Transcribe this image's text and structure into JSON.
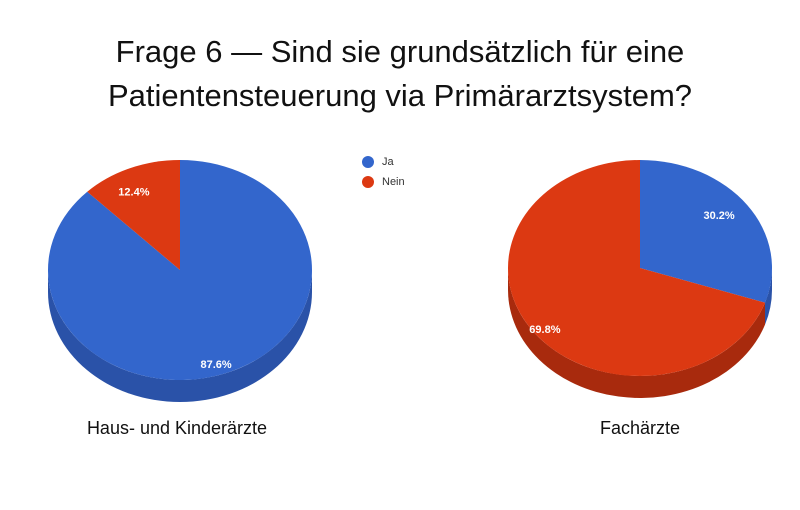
{
  "title": {
    "line1": "Frage 6 — Sind sie grundsätzlich für eine",
    "line2": "Patientensteuerung via Primärarztsystem?"
  },
  "legend": [
    {
      "label": "Ja",
      "color": "#3366cc"
    },
    {
      "label": "Nein",
      "color": "#dc3912"
    }
  ],
  "chart_data": [
    {
      "type": "pie",
      "caption": "Haus- und Kinderärzte",
      "slices": [
        {
          "label": "Ja",
          "value": 87.6,
          "text": "87.6%",
          "color": "#3366cc",
          "side_color": "#2a52a8"
        },
        {
          "label": "Nein",
          "value": 12.4,
          "text": "12.4%",
          "color": "#dc3912",
          "side_color": "#a82a0d"
        }
      ]
    },
    {
      "type": "pie",
      "caption": "Fachärzte",
      "slices": [
        {
          "label": "Ja",
          "value": 30.2,
          "text": "30.2%",
          "color": "#3366cc",
          "side_color": "#2a52a8"
        },
        {
          "label": "Nein",
          "value": 69.8,
          "text": "69.8%",
          "color": "#dc3912",
          "side_color": "#a82a0d"
        }
      ]
    }
  ]
}
